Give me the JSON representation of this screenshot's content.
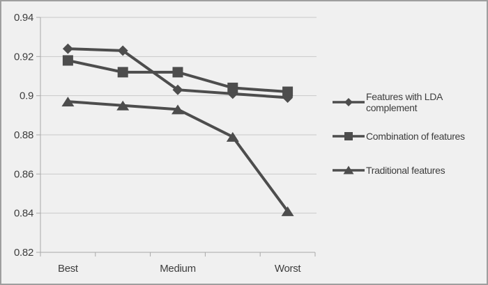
{
  "chart_data": {
    "type": "line",
    "categories": [
      "Best",
      "",
      "Medium",
      "",
      "Worst"
    ],
    "series": [
      {
        "name": "Features with LDA complement",
        "marker": "diamond",
        "values": [
          0.924,
          0.923,
          0.903,
          0.901,
          0.899
        ]
      },
      {
        "name": "Combination of features",
        "marker": "square",
        "values": [
          0.918,
          0.912,
          0.912,
          0.904,
          0.902
        ]
      },
      {
        "name": "Traditional features",
        "marker": "triangle",
        "values": [
          0.897,
          0.895,
          0.893,
          0.879,
          0.841
        ]
      }
    ],
    "title": "",
    "xlabel": "",
    "ylabel": "",
    "ylim": [
      0.82,
      0.94
    ],
    "yticks": [
      0.94,
      0.92,
      0.9,
      0.88,
      0.86,
      0.84,
      0.82
    ],
    "ytick_labels": [
      "0.94",
      "0.92",
      "0.9",
      "0.88",
      "0.86",
      "0.84",
      "0.82"
    ],
    "grid": true,
    "legend_position": "right",
    "colors": {
      "series": "#4d4d4d",
      "gridline": "#c9c9c9",
      "axis": "#a8a8a8",
      "text": "#3d3d3d",
      "background": "#f0f0f0",
      "border": "#9e9e9e"
    }
  }
}
